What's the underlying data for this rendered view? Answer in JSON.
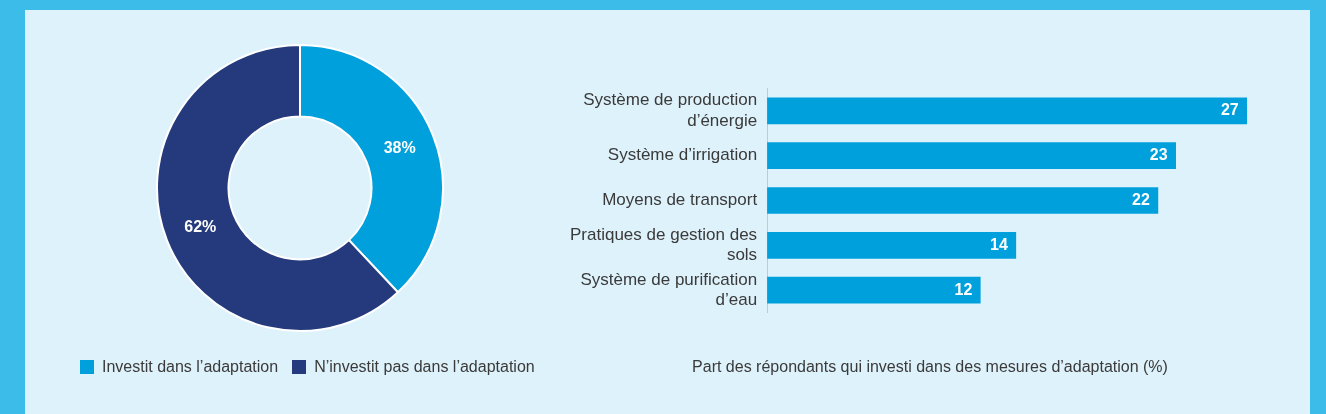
{
  "chart_data": [
    {
      "type": "donut",
      "categories": [
        "Investit dans l’adaptation",
        "N’investit pas dans l’adaptation"
      ],
      "values": [
        38,
        62
      ],
      "value_labels": [
        "38%",
        "62%"
      ],
      "colors": [
        "#00a0dc",
        "#243a7c"
      ],
      "data_labels": true,
      "legend": "bottom"
    },
    {
      "type": "bar",
      "orientation": "horizontal",
      "categories": [
        "Système de production d’énergie",
        "Système d’irrigation",
        "Moyens de transport",
        "Pratiques de gestion des sols",
        "Système de purification d’eau"
      ],
      "values": [
        27,
        23,
        22,
        14,
        12
      ],
      "color": "#00a0dc",
      "data_labels": true,
      "xlabel": "Part des répondants qui investi dans des mesures d’adaptation (%)"
    }
  ]
}
